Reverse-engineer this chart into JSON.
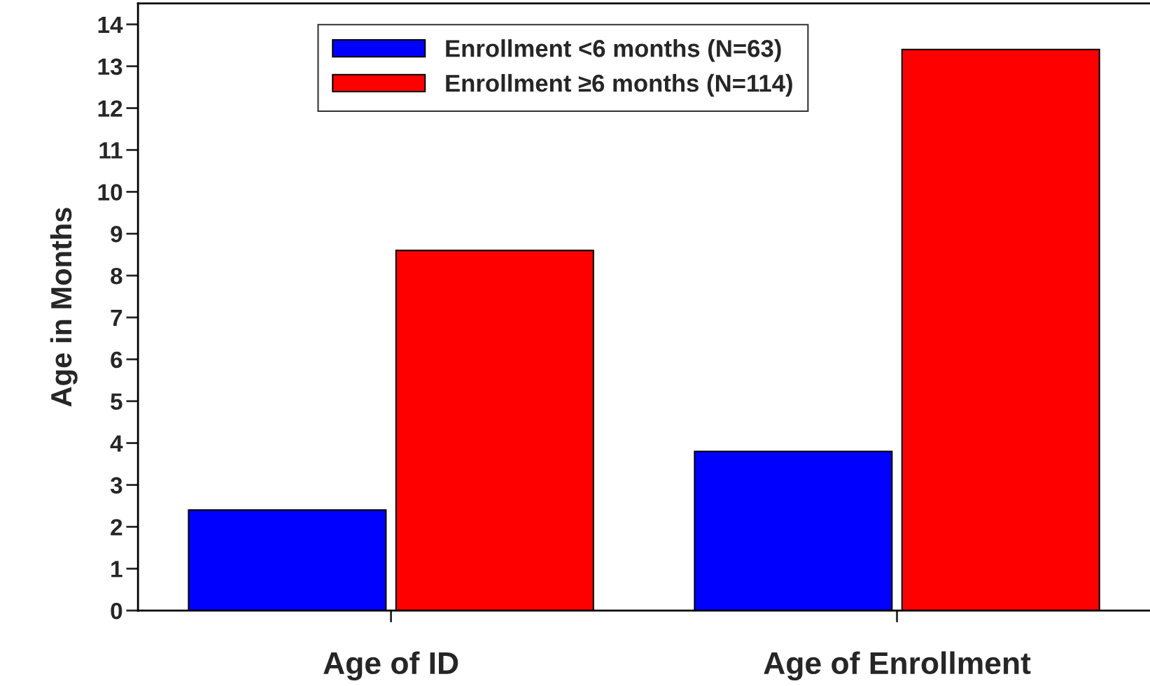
{
  "chart_data": {
    "type": "bar",
    "ylabel": "Age in Months",
    "categories": [
      "Age of ID",
      "Age of Enrollment"
    ],
    "series": [
      {
        "name": "Enrollment <6 months (N=63)",
        "color": "#0000ff",
        "values": [
          2.4,
          3.8
        ]
      },
      {
        "name": "Enrollment ≥6 months (N=114)",
        "color": "#ff0000",
        "values": [
          8.6,
          13.4
        ]
      }
    ],
    "ylim": [
      0,
      14.5
    ],
    "yticks": [
      0,
      1,
      2,
      3,
      4,
      5,
      6,
      7,
      8,
      9,
      10,
      11,
      12,
      13,
      14
    ],
    "grid": false,
    "legend": "top"
  }
}
